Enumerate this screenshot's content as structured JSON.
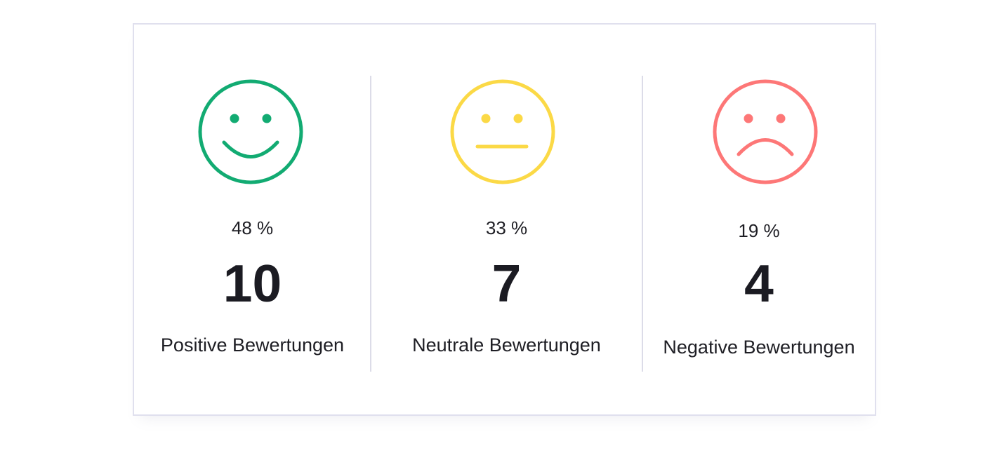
{
  "colors": {
    "positive": "#12ab72",
    "neutral": "#fbd946",
    "negative": "#fd7777",
    "border": "#e0e0ee",
    "divider": "#dcdce8",
    "text": "#1c1c22"
  },
  "ratings": [
    {
      "key": "positive",
      "icon": "smiley-happy-icon",
      "percent": "48 %",
      "count": "10",
      "label": "Positive Bewertungen"
    },
    {
      "key": "neutral",
      "icon": "smiley-neutral-icon",
      "percent": "33 %",
      "count": "7",
      "label": "Neutrale Bewertungen"
    },
    {
      "key": "negative",
      "icon": "smiley-sad-icon",
      "percent": "19 %",
      "count": "4",
      "label": "Negative Bewertungen"
    }
  ]
}
